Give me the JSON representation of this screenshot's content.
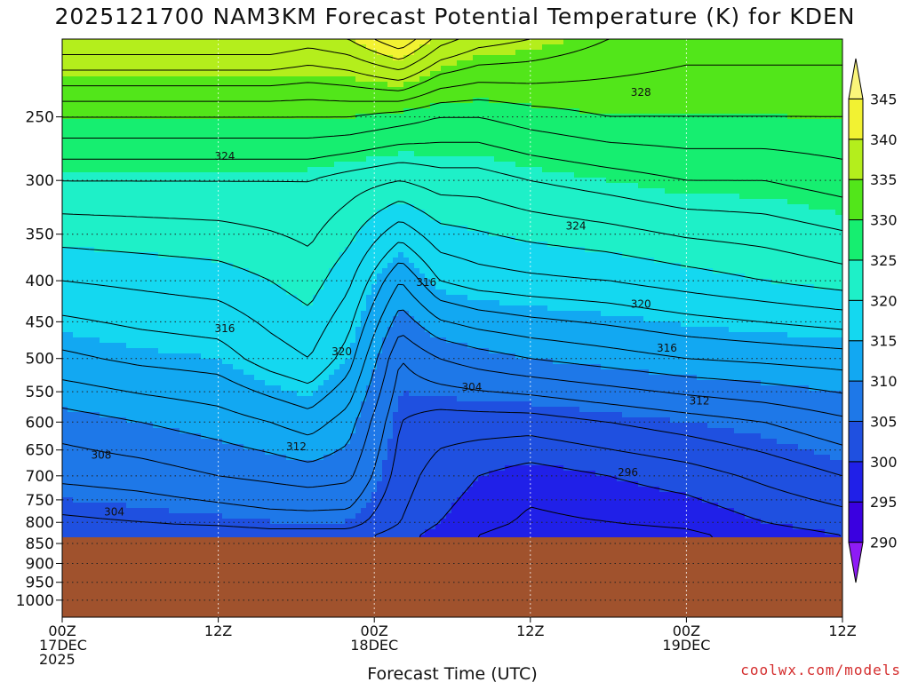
{
  "chart_data": {
    "type": "heatmap",
    "title": "2025121700 NAM3KM Forecast Potential Temperature (K) for KDEN",
    "xlabel": "Forecast Time (UTC)",
    "ylabel": "",
    "x_range_hours": [
      0,
      60
    ],
    "y_range_hpa": [
      200,
      1050
    ],
    "y_scale": "log",
    "y_ticks": [
      250,
      300,
      350,
      400,
      450,
      500,
      550,
      600,
      650,
      700,
      750,
      800,
      850,
      900,
      950,
      1000
    ],
    "x_ticks": [
      {
        "hour": 0,
        "lines": [
          "00Z",
          "17DEC",
          "2025"
        ]
      },
      {
        "hour": 12,
        "lines": [
          "12Z"
        ]
      },
      {
        "hour": 24,
        "lines": [
          "00Z",
          "18DEC"
        ]
      },
      {
        "hour": 36,
        "lines": [
          "12Z"
        ]
      },
      {
        "hour": 48,
        "lines": [
          "00Z",
          "19DEC"
        ]
      },
      {
        "hour": 60,
        "lines": [
          "12Z"
        ]
      }
    ],
    "grid": true,
    "surface_pressure_hpa": 835,
    "colorbar": {
      "position": "right",
      "levels": [
        290,
        295,
        300,
        305,
        310,
        315,
        320,
        325,
        330,
        335,
        340,
        345
      ],
      "colors": [
        "#8e1cf5",
        "#3a00e0",
        "#2020e8",
        "#1f50e0",
        "#1e78e8",
        "#12a8f2",
        "#14d8f0",
        "#1ef0c8",
        "#16ee70",
        "#52e61a",
        "#b4ee1c",
        "#f2f232",
        "#faf57a"
      ]
    },
    "theta_profiles": [
      {
        "hour": 0,
        "theta": [
          [
            830,
            302.5
          ],
          [
            800,
            303.5
          ],
          [
            700,
            306.5
          ],
          [
            600,
            309
          ],
          [
            500,
            313.5
          ],
          [
            400,
            318
          ],
          [
            300,
            324
          ],
          [
            250,
            330
          ],
          [
            200,
            340
          ]
        ]
      },
      {
        "hour": 6,
        "theta": [
          [
            830,
            302.5
          ],
          [
            800,
            304
          ],
          [
            700,
            307
          ],
          [
            600,
            310
          ],
          [
            500,
            314.5
          ],
          [
            400,
            318.5
          ],
          [
            300,
            324
          ],
          [
            250,
            330
          ],
          [
            200,
            340
          ]
        ]
      },
      {
        "hour": 12,
        "theta": [
          [
            830,
            302.5
          ],
          [
            800,
            304.5
          ],
          [
            700,
            308
          ],
          [
            600,
            311
          ],
          [
            500,
            315
          ],
          [
            400,
            319
          ],
          [
            300,
            324
          ],
          [
            250,
            330
          ],
          [
            200,
            340
          ]
        ]
      },
      {
        "hour": 16,
        "theta": [
          [
            830,
            303
          ],
          [
            800,
            305
          ],
          [
            700,
            308.5
          ],
          [
            600,
            312
          ],
          [
            500,
            317
          ],
          [
            400,
            320
          ],
          [
            300,
            324
          ],
          [
            250,
            330
          ],
          [
            200,
            340
          ]
        ]
      },
      {
        "hour": 19,
        "theta": [
          [
            830,
            303
          ],
          [
            800,
            305
          ],
          [
            700,
            309
          ],
          [
            600,
            313
          ],
          [
            500,
            318
          ],
          [
            400,
            321
          ],
          [
            300,
            324
          ],
          [
            250,
            330
          ],
          [
            200,
            339
          ]
        ]
      },
      {
        "hour": 22,
        "theta": [
          [
            830,
            303
          ],
          [
            800,
            305
          ],
          [
            700,
            308.5
          ],
          [
            600,
            311
          ],
          [
            500,
            315
          ],
          [
            400,
            318.5
          ],
          [
            300,
            323
          ],
          [
            250,
            330
          ],
          [
            200,
            340
          ]
        ]
      },
      {
        "hour": 26,
        "theta": [
          [
            830,
            301
          ],
          [
            800,
            302
          ],
          [
            700,
            303
          ],
          [
            600,
            304
          ],
          [
            500,
            306
          ],
          [
            400,
            312
          ],
          [
            300,
            322
          ],
          [
            250,
            329
          ],
          [
            200,
            344
          ]
        ]
      },
      {
        "hour": 29,
        "theta": [
          [
            830,
            299
          ],
          [
            800,
            300
          ],
          [
            700,
            301
          ],
          [
            600,
            303
          ],
          [
            500,
            308
          ],
          [
            400,
            316
          ],
          [
            300,
            323
          ],
          [
            250,
            328
          ],
          [
            200,
            339
          ]
        ]
      },
      {
        "hour": 32,
        "theta": [
          [
            830,
            298
          ],
          [
            800,
            299
          ],
          [
            700,
            300
          ],
          [
            600,
            303
          ],
          [
            500,
            309
          ],
          [
            400,
            317
          ],
          [
            300,
            323
          ],
          [
            250,
            328
          ],
          [
            200,
            337
          ]
        ]
      },
      {
        "hour": 36,
        "theta": [
          [
            830,
            296.5
          ],
          [
            800,
            297.5
          ],
          [
            700,
            299
          ],
          [
            600,
            303
          ],
          [
            500,
            310
          ],
          [
            400,
            317.5
          ],
          [
            300,
            324
          ],
          [
            250,
            329
          ],
          [
            200,
            336
          ]
        ]
      },
      {
        "hour": 42,
        "theta": [
          [
            830,
            297
          ],
          [
            800,
            298
          ],
          [
            700,
            300
          ],
          [
            600,
            304
          ],
          [
            500,
            311
          ],
          [
            400,
            318
          ],
          [
            300,
            325
          ],
          [
            250,
            330
          ],
          [
            200,
            334
          ]
        ]
      },
      {
        "hour": 48,
        "theta": [
          [
            830,
            297.5
          ],
          [
            800,
            298.5
          ],
          [
            700,
            301
          ],
          [
            600,
            305
          ],
          [
            500,
            312
          ],
          [
            400,
            319
          ],
          [
            300,
            326
          ],
          [
            250,
            330
          ],
          [
            200,
            333
          ]
        ]
      },
      {
        "hour": 54,
        "theta": [
          [
            830,
            299
          ],
          [
            800,
            300
          ],
          [
            700,
            302.5
          ],
          [
            600,
            306
          ],
          [
            500,
            312.5
          ],
          [
            400,
            320
          ],
          [
            300,
            326
          ],
          [
            250,
            330
          ],
          [
            200,
            333
          ]
        ]
      },
      {
        "hour": 60,
        "theta": [
          [
            830,
            300
          ],
          [
            800,
            301
          ],
          [
            700,
            304
          ],
          [
            600,
            307.5
          ],
          [
            500,
            313
          ],
          [
            400,
            321
          ],
          [
            300,
            327
          ],
          [
            250,
            330
          ],
          [
            200,
            333
          ]
        ]
      }
    ],
    "contour_labels": [
      {
        "text": "328",
        "hour": 44.5,
        "hpa": 233
      },
      {
        "text": "324",
        "hour": 12.5,
        "hpa": 280
      },
      {
        "text": "324",
        "hour": 39.5,
        "hpa": 342
      },
      {
        "text": "320",
        "hour": 44.5,
        "hpa": 428
      },
      {
        "text": "320",
        "hour": 21.5,
        "hpa": 490
      },
      {
        "text": "316",
        "hour": 28,
        "hpa": 402
      },
      {
        "text": "316",
        "hour": 12.5,
        "hpa": 459
      },
      {
        "text": "316",
        "hour": 46.5,
        "hpa": 485
      },
      {
        "text": "312",
        "hour": 49,
        "hpa": 565
      },
      {
        "text": "312",
        "hour": 18,
        "hpa": 644
      },
      {
        "text": "308",
        "hour": 3,
        "hpa": 660
      },
      {
        "text": "304",
        "hour": 31.5,
        "hpa": 543
      },
      {
        "text": "304",
        "hour": 4,
        "hpa": 776
      },
      {
        "text": "296",
        "hour": 43.5,
        "hpa": 693
      }
    ]
  },
  "footer": {
    "credit": "coolwx.com/models"
  },
  "colors": {
    "terrain": "#a0522d",
    "contour": "#000000",
    "grid": "#222222",
    "credit": "#d42d2d"
  }
}
